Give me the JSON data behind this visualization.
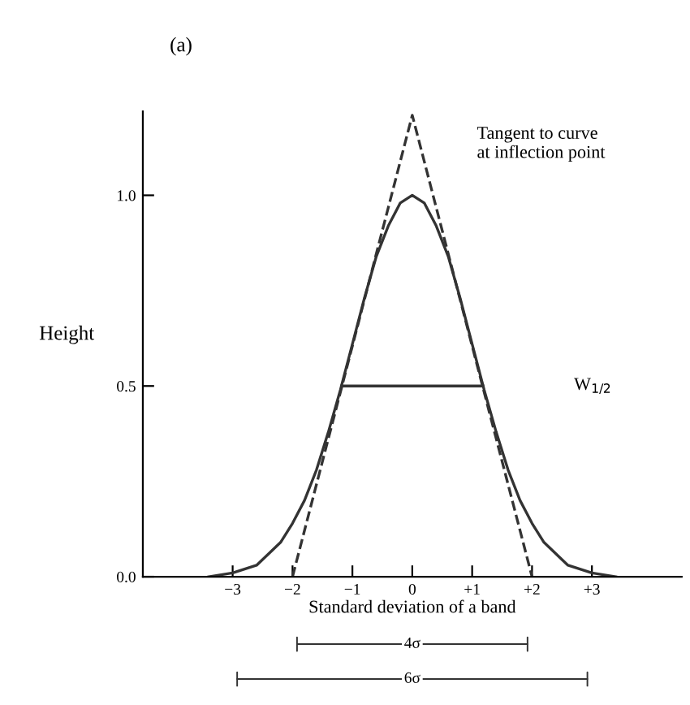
{
  "chart_data": {
    "type": "line",
    "title": "(a)",
    "xlabel": "Standard deviation of a band",
    "ylabel": "Height",
    "series": [
      {
        "color": "#333333",
        "line_style": "solid",
        "x": [
          -3.4,
          -3.0,
          -2.6,
          -2.2,
          -2.0,
          -1.8,
          -1.6,
          -1.4,
          -1.2,
          -1.0,
          -0.8,
          -0.6,
          -0.4,
          -0.2,
          0.0,
          0.2,
          0.4,
          0.6,
          0.8,
          1.0,
          1.2,
          1.4,
          1.6,
          1.8,
          2.0,
          2.2,
          2.6,
          3.0,
          3.4
        ],
        "values": [
          0.0,
          0.01,
          0.03,
          0.09,
          0.14,
          0.2,
          0.28,
          0.38,
          0.49,
          0.61,
          0.73,
          0.84,
          0.92,
          0.98,
          1.0,
          0.98,
          0.92,
          0.84,
          0.73,
          0.61,
          0.49,
          0.38,
          0.28,
          0.2,
          0.14,
          0.09,
          0.03,
          0.01,
          0.0
        ]
      },
      {
        "color": "#333333",
        "line_style": "dashed",
        "x": [
          -2.0,
          0.0,
          2.0
        ],
        "values": [
          0.0,
          1.21,
          0.0
        ]
      },
      {
        "color": "#333333",
        "line_style": "solid",
        "x": [
          -1.18,
          1.18
        ],
        "values": [
          0.5,
          0.5
        ]
      }
    ],
    "annotations": [
      "Tangent to curve\nat inflection point",
      "W$_{1/2}$",
      "4σ",
      "6σ"
    ],
    "xlim": [
      -4.5,
      4.5
    ],
    "ylim": [
      0,
      1.22
    ],
    "xticks": [
      {
        "value": -3,
        "label": "−3"
      },
      {
        "value": -2,
        "label": "−2"
      },
      {
        "value": -1,
        "label": "−1"
      },
      {
        "value": 0,
        "label": "0"
      },
      {
        "value": 1,
        "label": "+1"
      },
      {
        "value": 2,
        "label": "+2"
      },
      {
        "value": 3,
        "label": "+3"
      }
    ],
    "yticks": [
      {
        "value": 0,
        "label": "0.0"
      },
      {
        "value": 0.5,
        "label": "0.5"
      },
      {
        "value": 1.0,
        "label": "1.0"
      }
    ],
    "grid": false,
    "legend": false
  }
}
